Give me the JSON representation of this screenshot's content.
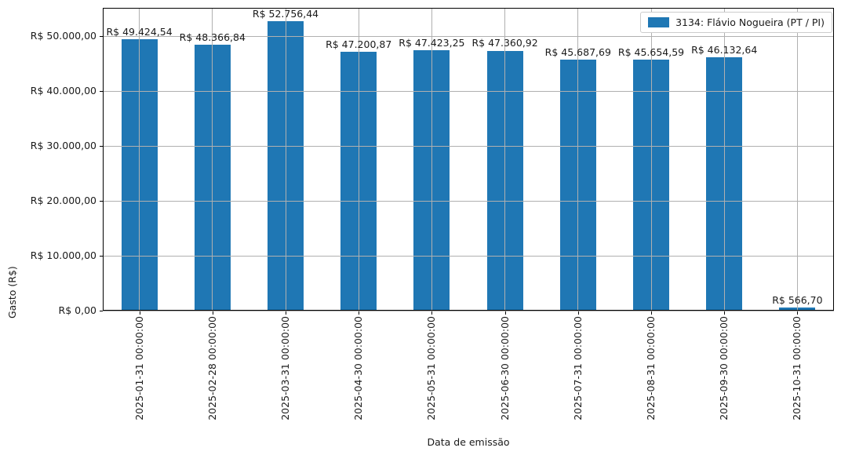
{
  "chart_data": {
    "type": "bar",
    "title": "",
    "xlabel": "Data de emissão",
    "ylabel": "Gasto (R$)",
    "categories": [
      "2025-01-31 00:00:00",
      "2025-02-28 00:00:00",
      "2025-03-31 00:00:00",
      "2025-04-30 00:00:00",
      "2025-05-31 00:00:00",
      "2025-06-30 00:00:00",
      "2025-07-31 00:00:00",
      "2025-08-31 00:00:00",
      "2025-09-30 00:00:00",
      "2025-10-31 00:00:00"
    ],
    "series": [
      {
        "name": "3134: Flávio Nogueira (PT / PI)",
        "color": "#1f77b4",
        "values": [
          49424.54,
          48366.84,
          52756.44,
          47200.87,
          47423.25,
          47360.92,
          45687.69,
          45654.59,
          46132.64,
          566.7
        ],
        "value_labels": [
          "R$ 49.424,54",
          "R$ 48.366,84",
          "R$ 52.756,44",
          "R$ 47.200,87",
          "R$ 47.423,25",
          "R$ 47.360,92",
          "R$ 45.687,69",
          "R$ 45.654,59",
          "R$ 46.132,64",
          "R$ 566,70"
        ]
      }
    ],
    "y_tick_values": [
      0,
      10000,
      20000,
      30000,
      40000,
      50000
    ],
    "y_tick_labels": [
      "R$ 0,00",
      "R$ 10.000,00",
      "R$ 20.000,00",
      "R$ 30.000,00",
      "R$ 40.000,00",
      "R$ 50.000,00"
    ],
    "ylim": [
      0,
      55146
    ],
    "grid": true,
    "grid_color": "#b0b0b0",
    "legend": {
      "position": "upper right",
      "label": "3134: Flávio Nogueira (PT / PI)"
    }
  }
}
